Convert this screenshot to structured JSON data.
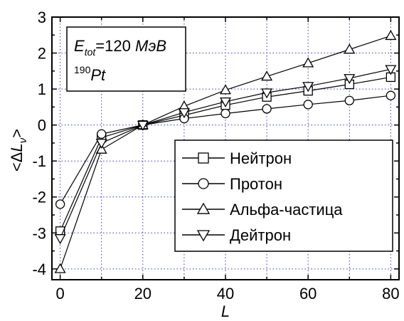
{
  "chart_data": {
    "type": "line",
    "x": [
      0,
      10,
      20,
      30,
      40,
      50,
      60,
      70,
      80
    ],
    "series": [
      {
        "name": "Нейтрон",
        "marker": "square",
        "values": [
          -2.95,
          -0.35,
          0.0,
          0.27,
          0.55,
          0.78,
          0.95,
          1.13,
          1.33
        ]
      },
      {
        "name": "Протон",
        "marker": "circle",
        "values": [
          -2.2,
          -0.25,
          0.0,
          0.18,
          0.32,
          0.45,
          0.57,
          0.68,
          0.82
        ]
      },
      {
        "name": "Альфа-частица",
        "marker": "triangle-up",
        "values": [
          -4.0,
          -0.68,
          0.0,
          0.52,
          0.97,
          1.35,
          1.72,
          2.1,
          2.48
        ]
      },
      {
        "name": "Дейтрон",
        "marker": "triangle-down",
        "values": [
          -3.15,
          -0.5,
          0.0,
          0.35,
          0.65,
          0.9,
          1.08,
          1.3,
          1.55
        ]
      }
    ],
    "xlim": [
      -2,
      82
    ],
    "ylim": [
      -4.3,
      3.0
    ],
    "xticks": [
      0,
      20,
      40,
      60,
      80
    ],
    "yticks": [
      -4,
      -3,
      -2,
      -1,
      0,
      1,
      2,
      3
    ],
    "grid_x": [
      0,
      10,
      20,
      30,
      40,
      50,
      60,
      70,
      80
    ],
    "grid_y": [
      -4,
      -3,
      -2,
      -1,
      0,
      1,
      2
    ],
    "grid_style": "dotted-blue",
    "xlabel": "L",
    "ylabel": {
      "open": "<",
      "delta": "Δ",
      "main": "L",
      "sub": "ν",
      "close": ">"
    },
    "legend_position": "lower-right",
    "annotation": {
      "e_main": "E",
      "e_sub": "tot",
      "energy": "=120",
      "unit": "МэВ",
      "mass_number": "190",
      "element": "Pt"
    }
  }
}
